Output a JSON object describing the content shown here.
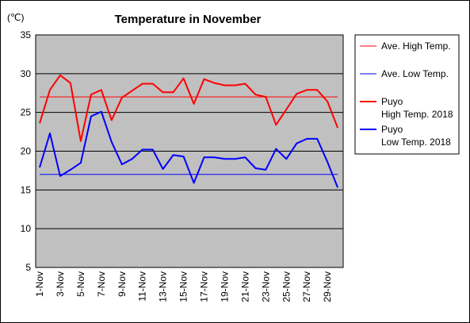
{
  "chart_data": {
    "type": "line",
    "title": "Temperature in November",
    "unit_label": "(℃)",
    "xlabel": "",
    "ylabel": "",
    "ylim": [
      5,
      35
    ],
    "yticks": [
      5,
      10,
      15,
      20,
      25,
      30,
      35
    ],
    "grid": "horizontal",
    "legend_position": "right",
    "plot_background": "#c0c0c0",
    "days": [
      "1-Nov",
      "2-Nov",
      "3-Nov",
      "4-Nov",
      "5-Nov",
      "6-Nov",
      "7-Nov",
      "8-Nov",
      "9-Nov",
      "10-Nov",
      "11-Nov",
      "12-Nov",
      "13-Nov",
      "14-Nov",
      "15-Nov",
      "16-Nov",
      "17-Nov",
      "18-Nov",
      "19-Nov",
      "20-Nov",
      "21-Nov",
      "22-Nov",
      "23-Nov",
      "24-Nov",
      "25-Nov",
      "26-Nov",
      "27-Nov",
      "28-Nov",
      "29-Nov",
      "30-Nov"
    ],
    "tick_labels": [
      "1-Nov",
      "3-Nov",
      "5-Nov",
      "7-Nov",
      "9-Nov",
      "11-Nov",
      "13-Nov",
      "15-Nov",
      "17-Nov",
      "19-Nov",
      "21-Nov",
      "23-Nov",
      "25-Nov",
      "27-Nov",
      "29-Nov"
    ],
    "series": [
      {
        "name": "Ave. High Temp.",
        "color": "#ff0000",
        "width": "thin",
        "values": [
          27.0,
          27.0,
          27.0,
          27.0,
          27.0,
          27.0,
          27.0,
          27.0,
          27.0,
          27.0,
          27.0,
          27.0,
          27.0,
          27.0,
          27.0,
          27.0,
          27.0,
          27.0,
          27.0,
          27.0,
          27.0,
          27.0,
          27.0,
          27.0,
          27.0,
          27.0,
          27.0,
          27.0,
          27.0,
          27.0
        ]
      },
      {
        "name": "Ave. Low Temp.",
        "color": "#0000ff",
        "width": "thin",
        "values": [
          17.0,
          17.0,
          17.0,
          17.0,
          17.0,
          17.0,
          17.0,
          17.0,
          17.0,
          17.0,
          17.0,
          17.0,
          17.0,
          17.0,
          17.0,
          17.0,
          17.0,
          17.0,
          17.0,
          17.0,
          17.0,
          17.0,
          17.0,
          17.0,
          17.0,
          17.0,
          17.0,
          17.0,
          17.0,
          17.0
        ]
      },
      {
        "name": "Puyo High Temp. 2018",
        "legend_lines": [
          "Puyo",
          "High Temp. 2018"
        ],
        "color": "#ff0000",
        "width": "thick",
        "values": [
          23.6,
          27.9,
          29.8,
          28.8,
          21.3,
          27.3,
          27.9,
          24.0,
          26.9,
          27.8,
          28.7,
          28.7,
          27.6,
          27.6,
          29.4,
          26.1,
          29.3,
          28.8,
          28.5,
          28.5,
          28.7,
          27.3,
          27.0,
          23.4,
          25.4,
          27.4,
          27.9,
          27.9,
          26.4,
          23.0
        ]
      },
      {
        "name": "Puyo Low Temp. 2018",
        "legend_lines": [
          "Puyo",
          "Low Temp. 2018"
        ],
        "color": "#0000ff",
        "width": "thick",
        "values": [
          17.9,
          22.3,
          16.8,
          17.6,
          18.5,
          24.5,
          25.1,
          21.2,
          18.3,
          19.0,
          20.2,
          20.2,
          17.7,
          19.5,
          19.3,
          15.9,
          19.2,
          19.2,
          19.0,
          19.0,
          19.2,
          17.8,
          17.6,
          20.3,
          19.0,
          21.0,
          21.6,
          21.6,
          18.6,
          15.3
        ]
      }
    ]
  }
}
